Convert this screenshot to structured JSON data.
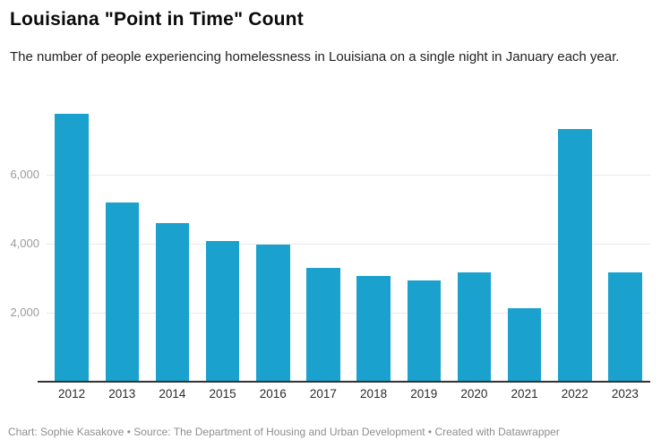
{
  "footer": {
    "text": "Chart: Sophie Kasakove • Source: The Department of Housing and Urban Development • Created with Datawrapper"
  },
  "colors": {
    "bar": "#1aa1cd",
    "gridline": "#e9e9e9",
    "axis_line": "#333333",
    "y_label": "#9b9b9b",
    "x_label": "#2b2b2b",
    "background": "#ffffff"
  },
  "chart_data": {
    "type": "bar",
    "title": "Louisiana \"Point in Time\" Count",
    "subtitle": "The number of people experiencing homelessness in Louisiana on a single night in January each year.",
    "categories": [
      "2012",
      "2013",
      "2014",
      "2015",
      "2016",
      "2017",
      "2018",
      "2019",
      "2020",
      "2021",
      "2022",
      "2023"
    ],
    "values": [
      7770,
      5200,
      4600,
      4080,
      3970,
      3300,
      3050,
      2930,
      3170,
      2130,
      7330,
      3170
    ],
    "xlabel": "",
    "ylabel": "",
    "ylim": [
      0,
      8200
    ],
    "yticks": [
      2000,
      4000,
      6000
    ],
    "ytick_labels": [
      "2,000",
      "4,000",
      "6,000"
    ],
    "grid": true,
    "legend_position": "none",
    "bar_color": "#1aa1cd"
  }
}
